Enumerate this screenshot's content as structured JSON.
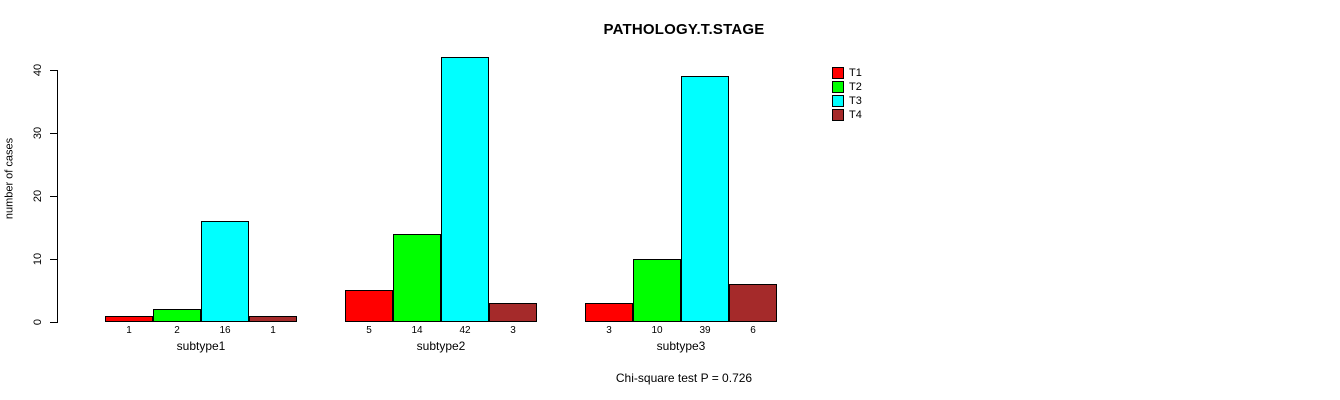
{
  "chart_data": {
    "type": "bar",
    "title": "PATHOLOGY.T.STAGE",
    "xlabel": "",
    "ylabel": "number of cases",
    "categories": [
      "subtype1",
      "subtype2",
      "subtype3"
    ],
    "series": [
      {
        "name": "T1",
        "color": "#ff0000",
        "values": [
          1,
          5,
          3
        ]
      },
      {
        "name": "T2",
        "color": "#00ff00",
        "values": [
          2,
          14,
          10
        ]
      },
      {
        "name": "T3",
        "color": "#00ffff",
        "values": [
          16,
          42,
          39
        ]
      },
      {
        "name": "T4",
        "color": "#a52a2a",
        "values": [
          1,
          3,
          6
        ]
      }
    ],
    "bar_value_labels": [
      [
        1,
        2,
        16,
        1
      ],
      [
        5,
        14,
        42,
        3
      ],
      [
        3,
        10,
        39,
        6
      ]
    ],
    "ylim": [
      0,
      40
    ],
    "yticks": [
      0,
      10,
      20,
      30,
      40
    ],
    "grid": false,
    "legend": {
      "position": "top-right",
      "entries": [
        "T1",
        "T2",
        "T3",
        "T4"
      ]
    },
    "annotation": "Chi-square test P = 0.726",
    "colors": {
      "axis": "#000000",
      "background": "#ffffff"
    }
  }
}
